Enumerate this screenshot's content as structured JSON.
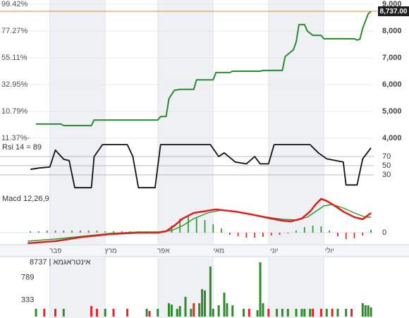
{
  "chart_data": [
    {
      "type": "line",
      "xlim": [
        -10,
        125
      ],
      "ylim": [
        3895,
        9105
      ],
      "yticks": [
        {
          "value": 4000,
          "label": "4,000"
        },
        {
          "value": 5000,
          "label": "5,000"
        },
        {
          "value": 6000,
          "label": "6,000"
        },
        {
          "value": 7000,
          "label": "7,000"
        },
        {
          "value": 8000,
          "label": "8,000"
        },
        {
          "value": 9000,
          "label": "9,000"
        }
      ],
      "y2lim": [
        -13.69,
        101.75
      ],
      "y2ticks": [
        {
          "value": -11.37,
          "label": "11.37%-"
        },
        {
          "value": 10.79,
          "label": "10.79%"
        },
        {
          "value": 32.95,
          "label": "32.95%"
        },
        {
          "value": 55.11,
          "label": "55.11%"
        },
        {
          "value": 77.27,
          "label": "77.27%"
        },
        {
          "value": 99.42,
          "label": "99.42%"
        }
      ],
      "grid": true,
      "last_value": {
        "value": 8737,
        "label": "8,737.00"
      },
      "last_color": "#d98a3a",
      "series": [
        {
          "color": "#2b8a2b",
          "x": [
            3,
            12,
            13,
            23,
            24,
            47,
            48,
            50,
            51,
            53,
            55,
            60,
            61,
            67,
            68,
            73,
            74,
            84,
            85,
            92,
            93,
            96,
            97,
            98,
            100,
            101,
            103,
            106,
            107,
            118,
            119,
            120,
            121,
            123,
            124
          ],
          "values": [
            4530,
            4530,
            4470,
            4470,
            4680,
            4680,
            4810,
            4810,
            5470,
            5790,
            5820,
            5820,
            6180,
            6180,
            6450,
            6450,
            6500,
            6500,
            6530,
            6530,
            7050,
            7300,
            7600,
            8240,
            8240,
            8000,
            7840,
            7840,
            7710,
            7710,
            7660,
            7700,
            8100,
            8640,
            8737
          ]
        }
      ]
    },
    {
      "type": "line",
      "title": "Rsi 14 = 89",
      "xlim": [
        -10,
        125
      ],
      "ylim": [
        0,
        100
      ],
      "yticks": [
        30,
        50,
        70
      ],
      "grid": true,
      "series": [
        {
          "color": "#111111",
          "x": [
            1,
            4,
            8,
            10,
            13,
            15,
            17,
            23,
            24,
            27,
            36,
            38,
            40,
            46,
            48,
            66,
            69,
            71,
            75,
            79,
            82,
            84,
            87,
            89,
            102,
            105,
            108,
            114,
            115,
            119,
            121,
            124
          ],
          "values": [
            42,
            45,
            47,
            84,
            64,
            61,
            2,
            2,
            70,
            96,
            96,
            70,
            2,
            2,
            96,
            96,
            70,
            78,
            58,
            54,
            70,
            54,
            54,
            96,
            96,
            78,
            65,
            58,
            8,
            8,
            65,
            89
          ]
        }
      ]
    },
    {
      "type": "macd",
      "title": "Macd 12,26,9",
      "xlim": [
        -10,
        125
      ],
      "ylim": [
        -20,
        50
      ],
      "yticks": [
        0
      ],
      "grid": true,
      "series": [
        {
          "type": "bar",
          "up_color": "#3a9a3a",
          "down_color": "#e03030",
          "x": [
            1,
            4,
            7,
            10,
            13,
            16,
            19,
            22,
            25,
            28,
            31,
            34,
            37,
            40,
            43,
            46,
            49,
            52,
            55,
            58,
            61,
            64,
            67,
            70,
            73,
            76,
            79,
            82,
            85,
            88,
            91,
            94,
            97,
            100,
            103,
            106,
            109,
            112,
            115,
            118,
            121,
            124
          ],
          "values": [
            2,
            2,
            3,
            3,
            3,
            3,
            3,
            3,
            3,
            2,
            2,
            2,
            2,
            2,
            2,
            2,
            3,
            10,
            20,
            24,
            22,
            18,
            12,
            6,
            -3,
            -5,
            -7,
            -7,
            -6,
            -4,
            -3,
            -1,
            3,
            8,
            10,
            9,
            3,
            -5,
            -9,
            -8,
            -4,
            4
          ]
        },
        {
          "type": "line",
          "color": "#2b9a2b",
          "x": [
            0,
            10,
            20,
            30,
            40,
            47,
            52,
            56,
            60,
            65,
            70,
            77,
            85,
            92,
            97,
            101,
            104,
            107,
            110,
            114,
            118,
            122,
            124
          ],
          "values": [
            -12,
            -9,
            -5,
            -1,
            1,
            1,
            3,
            10,
            20,
            28,
            32,
            29,
            23,
            19,
            18,
            22,
            30,
            38,
            40,
            35,
            28,
            22,
            22
          ]
        },
        {
          "type": "line",
          "color": "#e02020",
          "x": [
            0,
            10,
            20,
            30,
            40,
            47,
            50,
            53,
            56,
            60,
            68,
            75,
            82,
            88,
            92,
            95,
            99,
            102,
            104,
            106,
            108,
            111,
            114,
            118,
            121,
            124
          ],
          "values": [
            -15,
            -12,
            -6,
            -2,
            0,
            0,
            2,
            10,
            20,
            28,
            33,
            30,
            25,
            20,
            17,
            16,
            20,
            30,
            40,
            48,
            45,
            38,
            30,
            22,
            19,
            28
          ]
        }
      ]
    },
    {
      "type": "bar",
      "title": "8737 | אינטראגמא",
      "xlim": [
        -10,
        125
      ],
      "ylim": [
        0,
        1200
      ],
      "yticks": [
        333,
        789
      ],
      "xticks": [
        {
          "value": 8,
          "label": "פבר"
        },
        {
          "value": 28,
          "label": "מרץ"
        },
        {
          "value": 47,
          "label": "אפר"
        },
        {
          "value": 67,
          "label": "מאי"
        },
        {
          "value": 87,
          "label": "יוני"
        },
        {
          "value": 107,
          "label": "יולי"
        }
      ],
      "up_color": "#2e8b2e",
      "down_color": "#e32626",
      "x": [
        3,
        6,
        10,
        13,
        23,
        25,
        28,
        31,
        36,
        43,
        44,
        47,
        51,
        52,
        54,
        55,
        57,
        59,
        60,
        62,
        63,
        64,
        66,
        67,
        69,
        71,
        72,
        74,
        78,
        80,
        83,
        84,
        85,
        87,
        90,
        92,
        94,
        97,
        99,
        100,
        102,
        103,
        106,
        108,
        110,
        112,
        115,
        117,
        121,
        122,
        123,
        124
      ],
      "values": [
        157,
        157,
        157,
        157,
        214,
        157,
        157,
        157,
        157,
        157,
        114,
        157,
        271,
        243,
        157,
        214,
        400,
        157,
        271,
        271,
        557,
        529,
        1014,
        157,
        229,
        486,
        271,
        229,
        157,
        157,
        129,
        1100,
        271,
        157,
        157,
        157,
        157,
        157,
        157,
        157,
        157,
        157,
        157,
        157,
        157,
        157,
        157,
        157,
        271,
        229,
        229,
        186
      ],
      "direction": [
        "up",
        "down",
        "down",
        "up",
        "down",
        "down",
        "up",
        "down",
        "down",
        "up",
        "down",
        "up",
        "up",
        "up",
        "up",
        "up",
        "up",
        "up",
        "down",
        "up",
        "up",
        "up",
        "up",
        "up",
        "up",
        "up",
        "up",
        "up",
        "up",
        "down",
        "up",
        "up",
        "up",
        "down",
        "up",
        "up",
        "up",
        "up",
        "up",
        "up",
        "up",
        "down",
        "down",
        "up",
        "down",
        "up",
        "up",
        "down",
        "up",
        "up",
        "up",
        "up"
      ]
    }
  ]
}
